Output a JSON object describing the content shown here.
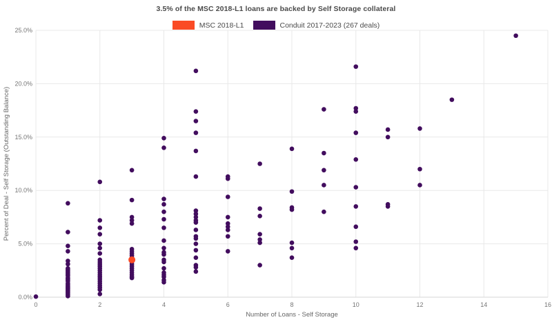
{
  "chart_data": {
    "type": "scatter",
    "title": "3.5% of the MSC 2018-L1 loans are backed by Self Storage collateral",
    "xlabel": "Number of Loans - Self Storage",
    "ylabel": "Percent of Deal - Self Storage (Outstanding Balance)",
    "xlim": [
      0,
      16
    ],
    "ylim": [
      0,
      25
    ],
    "x_ticks": [
      0,
      2,
      4,
      6,
      8,
      10,
      12,
      14,
      16
    ],
    "y_ticks": [
      {
        "value": 0,
        "label": "0.0%"
      },
      {
        "value": 5,
        "label": "5.0%"
      },
      {
        "value": 10,
        "label": "10.0%"
      },
      {
        "value": 15,
        "label": "15.0%"
      },
      {
        "value": 20,
        "label": "20.0%"
      },
      {
        "value": 25,
        "label": "25.0%"
      }
    ],
    "grid": true,
    "legend_position": "top-center",
    "colors": {
      "background": "#ffffff",
      "gridline": "#e8e8e8",
      "axis_line": "#d6d6d6",
      "tick_text": "#757575",
      "title_text": "#4a4a4a",
      "axis_title_text": "#666666"
    },
    "series": [
      {
        "name": "MSC 2018-L1",
        "color": "#fa4b25",
        "radius": 5,
        "points": [
          [
            3,
            3.5
          ]
        ]
      },
      {
        "name": "Conduit 2017-2023 (267 deals)",
        "color": "#420d5e",
        "radius": 3.3,
        "points": [
          [
            0,
            0.05
          ],
          [
            1,
            8.8
          ],
          [
            1,
            6.1
          ],
          [
            1,
            4.8
          ],
          [
            1,
            4.3
          ],
          [
            1,
            3.4
          ],
          [
            1,
            3.1
          ],
          [
            1,
            2.7
          ],
          [
            1,
            2.6
          ],
          [
            1,
            2.5
          ],
          [
            1,
            2.4
          ],
          [
            1,
            2.3
          ],
          [
            1,
            2.2
          ],
          [
            1,
            2.1
          ],
          [
            1,
            2.0
          ],
          [
            1,
            1.8
          ],
          [
            1,
            1.7
          ],
          [
            1,
            1.6
          ],
          [
            1,
            1.5
          ],
          [
            1,
            1.3
          ],
          [
            1,
            1.2
          ],
          [
            1,
            1.1
          ],
          [
            1,
            1.0
          ],
          [
            1,
            0.9
          ],
          [
            1,
            0.8
          ],
          [
            1,
            0.7
          ],
          [
            1,
            0.6
          ],
          [
            1,
            0.5
          ],
          [
            1,
            0.4
          ],
          [
            1,
            0.3
          ],
          [
            1,
            0.2
          ],
          [
            1,
            0.1
          ],
          [
            2,
            10.8
          ],
          [
            2,
            7.2
          ],
          [
            2,
            6.5
          ],
          [
            2,
            5.9
          ],
          [
            2,
            5.0
          ],
          [
            2,
            4.6
          ],
          [
            2,
            4.1
          ],
          [
            2,
            3.5
          ],
          [
            2,
            3.3
          ],
          [
            2,
            3.1
          ],
          [
            2,
            2.9
          ],
          [
            2,
            2.7
          ],
          [
            2,
            2.5
          ],
          [
            2,
            2.3
          ],
          [
            2,
            2.1
          ],
          [
            2,
            1.9
          ],
          [
            2,
            1.7
          ],
          [
            2,
            1.5
          ],
          [
            2,
            1.3
          ],
          [
            2,
            1.1
          ],
          [
            2,
            0.9
          ],
          [
            2,
            0.7
          ],
          [
            2,
            0.3
          ],
          [
            3,
            11.9
          ],
          [
            3,
            9.1
          ],
          [
            3,
            7.5
          ],
          [
            3,
            7.2
          ],
          [
            3,
            6.9
          ],
          [
            3,
            4.5
          ],
          [
            3,
            4.3
          ],
          [
            3,
            4.1
          ],
          [
            3,
            3.9
          ],
          [
            3,
            3.7
          ],
          [
            3,
            3.3
          ],
          [
            3,
            3.1
          ],
          [
            3,
            2.9
          ],
          [
            3,
            2.7
          ],
          [
            3,
            2.5
          ],
          [
            3,
            2.3
          ],
          [
            3,
            2.1
          ],
          [
            3,
            1.9
          ],
          [
            3,
            1.8
          ],
          [
            4,
            14.9
          ],
          [
            4,
            14.0
          ],
          [
            4,
            9.2
          ],
          [
            4,
            8.7
          ],
          [
            4,
            8.0
          ],
          [
            4,
            7.3
          ],
          [
            4,
            6.5
          ],
          [
            4,
            5.3
          ],
          [
            4,
            4.6
          ],
          [
            4,
            4.2
          ],
          [
            4,
            4.0
          ],
          [
            4,
            3.5
          ],
          [
            4,
            3.3
          ],
          [
            4,
            2.7
          ],
          [
            4,
            2.3
          ],
          [
            4,
            2.1
          ],
          [
            4,
            1.9
          ],
          [
            4,
            1.6
          ],
          [
            4,
            1.4
          ],
          [
            5,
            21.2
          ],
          [
            5,
            17.4
          ],
          [
            5,
            16.5
          ],
          [
            5,
            15.4
          ],
          [
            5,
            13.7
          ],
          [
            5,
            11.3
          ],
          [
            5,
            8.1
          ],
          [
            5,
            7.8
          ],
          [
            5,
            7.5
          ],
          [
            5,
            7.2
          ],
          [
            5,
            7.0
          ],
          [
            5,
            6.3
          ],
          [
            5,
            5.7
          ],
          [
            5,
            5.5
          ],
          [
            5,
            5.0
          ],
          [
            5,
            4.4
          ],
          [
            5,
            3.7
          ],
          [
            5,
            3.0
          ],
          [
            5,
            2.8
          ],
          [
            5,
            2.4
          ],
          [
            6,
            11.3
          ],
          [
            6,
            11.1
          ],
          [
            6,
            9.4
          ],
          [
            6,
            7.5
          ],
          [
            6,
            6.9
          ],
          [
            6,
            6.6
          ],
          [
            6,
            6.3
          ],
          [
            6,
            5.7
          ],
          [
            6,
            4.3
          ],
          [
            7,
            12.5
          ],
          [
            7,
            8.3
          ],
          [
            7,
            7.6
          ],
          [
            7,
            5.9
          ],
          [
            7,
            5.4
          ],
          [
            7,
            5.1
          ],
          [
            7,
            3.0
          ],
          [
            8,
            13.9
          ],
          [
            8,
            9.9
          ],
          [
            8,
            8.4
          ],
          [
            8,
            8.2
          ],
          [
            8,
            5.1
          ],
          [
            8,
            4.6
          ],
          [
            8,
            3.7
          ],
          [
            9,
            17.6
          ],
          [
            9,
            13.5
          ],
          [
            9,
            11.9
          ],
          [
            9,
            10.5
          ],
          [
            9,
            8.0
          ],
          [
            10,
            21.6
          ],
          [
            10,
            17.7
          ],
          [
            10,
            17.4
          ],
          [
            10,
            15.4
          ],
          [
            10,
            12.9
          ],
          [
            10,
            10.3
          ],
          [
            10,
            8.5
          ],
          [
            10,
            6.6
          ],
          [
            10,
            5.2
          ],
          [
            10,
            4.6
          ],
          [
            11,
            15.7
          ],
          [
            11,
            15.0
          ],
          [
            11,
            8.7
          ],
          [
            11,
            8.5
          ],
          [
            12,
            15.8
          ],
          [
            12,
            12.0
          ],
          [
            12,
            10.5
          ],
          [
            13,
            18.5
          ],
          [
            15,
            24.5
          ]
        ]
      }
    ]
  }
}
